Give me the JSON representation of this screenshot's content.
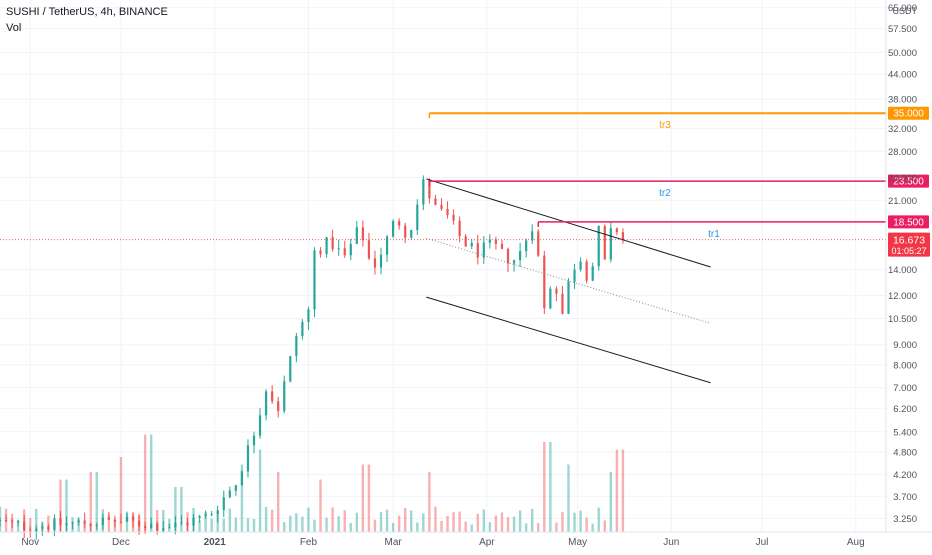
{
  "chart_data": {
    "type": "candlestick",
    "title": "SUSHI / TetherUS, 4h, BINANCE",
    "volume_label": "Vol",
    "currency_label": "USDT",
    "y_scale": "log",
    "ylim": [
      3.0,
      68.0
    ],
    "x_range": [
      "2020-10-22",
      "2021-08-11"
    ],
    "x_ticks": [
      {
        "label": "Nov",
        "date": "2020-11-01"
      },
      {
        "label": "Dec",
        "date": "2020-12-01"
      },
      {
        "label": "2021",
        "date": "2021-01-01",
        "bold": true
      },
      {
        "label": "Feb",
        "date": "2021-02-01"
      },
      {
        "label": "Mar",
        "date": "2021-03-01"
      },
      {
        "label": "Apr",
        "date": "2021-04-01"
      },
      {
        "label": "May",
        "date": "2021-05-01"
      },
      {
        "label": "Jun",
        "date": "2021-06-01"
      },
      {
        "label": "Jul",
        "date": "2021-07-01"
      },
      {
        "label": "Aug",
        "date": "2021-08-01"
      }
    ],
    "y_ticks": [
      "65.000",
      "57.500",
      "50.000",
      "44.000",
      "38.000",
      "32.000",
      "28.000",
      "24.000",
      "21.000",
      "14.000",
      "12.000",
      "10.500",
      "9.000",
      "8.000",
      "7.000",
      "6.200",
      "5.400",
      "4.800",
      "4.200",
      "3.700",
      "3.250"
    ],
    "price_path": [
      [
        "2020-10-22",
        3.2
      ],
      [
        "2020-11-01",
        3.1
      ],
      [
        "2020-12-01",
        3.2
      ],
      [
        "2020-12-20",
        3.1
      ],
      [
        "2021-01-01",
        3.3
      ],
      [
        "2021-01-10",
        4.0
      ],
      [
        "2021-01-16",
        5.4
      ],
      [
        "2021-01-20",
        7.0
      ],
      [
        "2021-01-24",
        6.2
      ],
      [
        "2021-01-30",
        9.5
      ],
      [
        "2021-02-03",
        11.0
      ],
      [
        "2021-02-05",
        15.5
      ],
      [
        "2021-02-10",
        16.5
      ],
      [
        "2021-02-15",
        15.0
      ],
      [
        "2021-02-20",
        18.0
      ],
      [
        "2021-02-24",
        14.0
      ],
      [
        "2021-02-28",
        16.0
      ],
      [
        "2021-03-04",
        19.0
      ],
      [
        "2021-03-08",
        17.0
      ],
      [
        "2021-03-13",
        23.2
      ],
      [
        "2021-03-17",
        20.0
      ],
      [
        "2021-03-21",
        19.0
      ],
      [
        "2021-03-26",
        16.5
      ],
      [
        "2021-03-31",
        15.5
      ],
      [
        "2021-04-05",
        16.2
      ],
      [
        "2021-04-09",
        15.0
      ],
      [
        "2021-04-13",
        14.8
      ],
      [
        "2021-04-18",
        18.2
      ],
      [
        "2021-04-20",
        15.0
      ],
      [
        "2021-04-21",
        10.2
      ],
      [
        "2021-04-23",
        12.0
      ],
      [
        "2021-04-25",
        13.5
      ],
      [
        "2021-04-28",
        10.8
      ],
      [
        "2021-05-01",
        14.0
      ],
      [
        "2021-05-04",
        15.0
      ],
      [
        "2021-05-07",
        13.0
      ],
      [
        "2021-05-10",
        17.5
      ],
      [
        "2021-05-12",
        14.5
      ],
      [
        "2021-05-13",
        15.8
      ],
      [
        "2021-05-15",
        18.8
      ],
      [
        "2021-05-17",
        16.673
      ]
    ],
    "volume_spikes": [
      [
        "2020-11-12",
        0.35
      ],
      [
        "2020-11-22",
        0.4
      ],
      [
        "2020-12-01",
        0.5
      ],
      [
        "2020-12-10",
        0.65
      ],
      [
        "2020-12-20",
        0.3
      ],
      [
        "2021-01-10",
        0.45
      ],
      [
        "2021-01-16",
        0.55
      ],
      [
        "2021-01-22",
        0.4
      ],
      [
        "2021-02-05",
        0.35
      ],
      [
        "2021-02-20",
        0.45
      ],
      [
        "2021-03-13",
        0.4
      ],
      [
        "2021-04-21",
        0.6
      ],
      [
        "2021-04-28",
        0.45
      ],
      [
        "2021-05-12",
        0.4
      ],
      [
        "2021-05-15",
        0.55
      ]
    ],
    "current_price": {
      "value": 16.673,
      "label": "16.673",
      "countdown": "01:05:27",
      "color": "#f23645"
    },
    "levels": [
      {
        "name": "tr3",
        "value": 35.0,
        "label": "35.000",
        "from": "2021-03-13",
        "color": "#ff9800"
      },
      {
        "name": "tr2",
        "value": 23.5,
        "label": "23.500",
        "from": "2021-03-13",
        "color": "#e91e63"
      },
      {
        "name": "tr1",
        "value": 18.5,
        "label": "18.500",
        "from": "2021-04-18",
        "color": "#e91e63"
      }
    ],
    "channel": [
      {
        "role": "upper",
        "from": [
          "2021-03-12",
          23.8
        ],
        "to": [
          "2021-06-14",
          14.2
        ],
        "style": "solid"
      },
      {
        "role": "middle",
        "from": [
          "2021-03-12",
          16.8
        ],
        "to": [
          "2021-06-14",
          10.2
        ],
        "style": "dotted"
      },
      {
        "role": "lower",
        "from": [
          "2021-03-12",
          11.9
        ],
        "to": [
          "2021-06-14",
          7.2
        ],
        "style": "solid"
      }
    ],
    "colors": {
      "up": "#26a69a",
      "down": "#ef5350",
      "text": "#131722",
      "axis_text": "#50535e",
      "channel": "#131722"
    }
  }
}
